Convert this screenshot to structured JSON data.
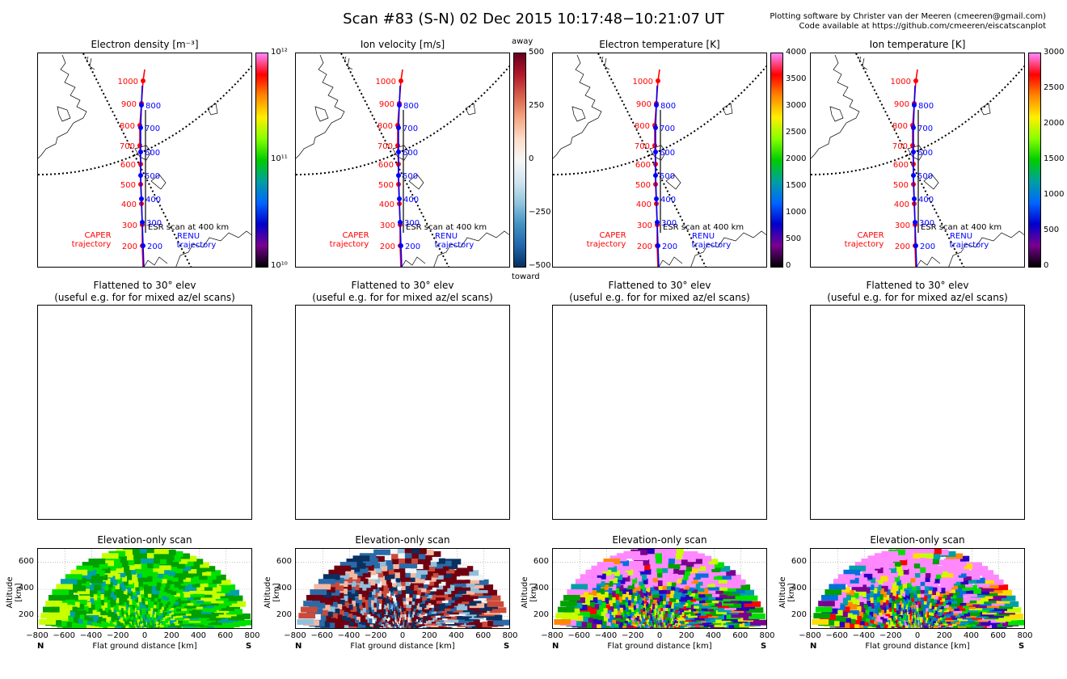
{
  "header": {
    "title": "Scan #83 (S-N)   02 Dec 2015 10:17:48−10:21:07 UT",
    "credit_line1": "Plotting software by Christer van der Meeren (cmeeren@gmail.com)",
    "credit_line2": "Code available at https://github.com/cmeeren/eiscatscanplot"
  },
  "map_annotations": {
    "caper_label_1": "CAPER",
    "caper_label_2": "trajectory",
    "renu_label_1": "RENU",
    "renu_label_2": "trajectory",
    "esr_label": "ESR scan at 400 km",
    "caper_altitudes": [
      "1000",
      "900",
      "800",
      "700",
      "600",
      "500",
      "400",
      "300",
      "200"
    ],
    "renu_altitudes": [
      "800",
      "700",
      "600",
      "500",
      "400",
      "300",
      "200"
    ],
    "caper_color": "#ff0000",
    "renu_color": "#0000ff"
  },
  "flattened": {
    "title_line1": "Flattened to 30° elev",
    "title_line2": "(useful e.g. for for mixed az/el scans)"
  },
  "elevation": {
    "title": "Elevation-only scan",
    "xlabel": "Flat ground distance [km]",
    "ylabel": "Altitude [km]",
    "north_label": "N",
    "south_label": "S"
  },
  "panels": [
    {
      "title": "Electron density [m⁻³]",
      "colormap": "spectral",
      "cbar_ticks": [
        "10¹²",
        "10¹¹",
        "10¹⁰"
      ],
      "cbar_extra_top": "",
      "cbar_extra_bottom": ""
    },
    {
      "title": "Ion velocity [m/s]",
      "colormap": "rdbu",
      "cbar_ticks": [
        "500",
        "250",
        "0",
        "−250",
        "−500"
      ],
      "cbar_extra_top": "away",
      "cbar_extra_bottom": "toward"
    },
    {
      "title": "Electron temperature [K]",
      "colormap": "spectral",
      "cbar_ticks": [
        "4000",
        "3500",
        "3000",
        "2500",
        "2000",
        "1500",
        "1000",
        "500",
        "0"
      ],
      "cbar_extra_top": "",
      "cbar_extra_bottom": ""
    },
    {
      "title": "Ion temperature [K]",
      "colormap": "spectral",
      "cbar_ticks": [
        "3000",
        "2500",
        "2000",
        "1500",
        "1000",
        "500",
        "0"
      ],
      "cbar_extra_top": "",
      "cbar_extra_bottom": ""
    }
  ],
  "chart_data": [
    {
      "type": "heatmap",
      "title": "Elevation-only scan",
      "xlabel": "Flat ground distance [km]",
      "ylabel": "Altitude [km]",
      "xlim": [
        -800,
        800
      ],
      "ylim": [
        100,
        700
      ],
      "xticks": [
        "−800",
        "−600",
        "−400",
        "−200",
        "0",
        "200",
        "400",
        "600",
        "800"
      ],
      "yticks": [
        "200",
        "400",
        "600"
      ],
      "grid": true,
      "panels": [
        "Electron density [m⁻³]",
        "Ion velocity [m/s]",
        "Electron temperature [K]",
        "Ion temperature [K]"
      ]
    }
  ]
}
